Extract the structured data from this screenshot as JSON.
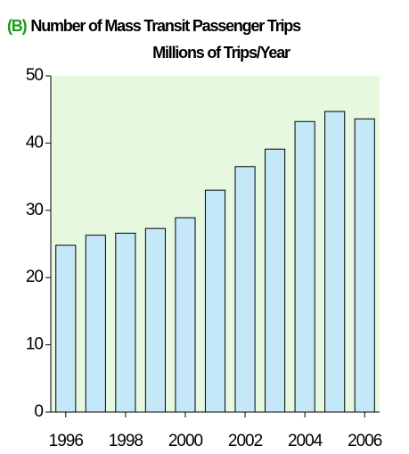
{
  "chart_data": {
    "type": "bar",
    "panel_label": "(B)",
    "title": "Number of Mass Transit Passenger Trips",
    "subtitle": "Millions of Trips/Year",
    "categories": [
      "1996",
      null,
      "1998",
      null,
      "2000",
      null,
      "2002",
      null,
      "2004",
      null,
      "2006"
    ],
    "values": [
      24.8,
      26.3,
      26.6,
      27.3,
      28.9,
      33.0,
      36.5,
      39.1,
      43.2,
      44.7,
      43.6
    ],
    "color": "#c5e8f8",
    "panel_label_color": "#1a9a1a",
    "background": "#e6f9e0",
    "ylim": [
      0,
      50
    ],
    "yticks": [
      0,
      10,
      20,
      30,
      40,
      50
    ]
  }
}
